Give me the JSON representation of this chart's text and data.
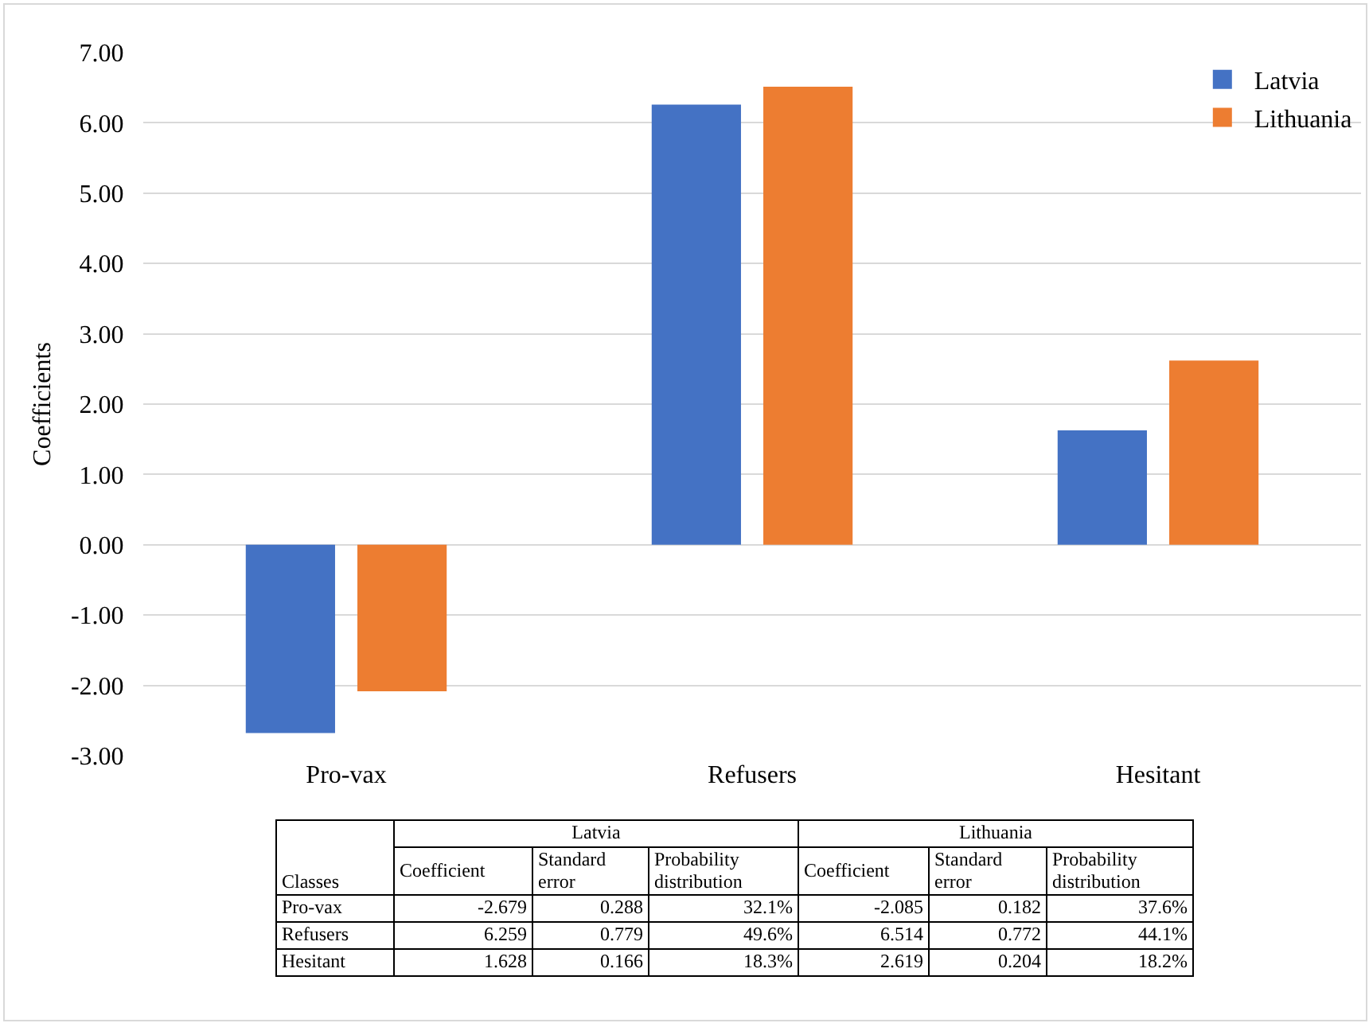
{
  "chart_data": {
    "type": "bar",
    "ylabel": "Coefficients",
    "categories": [
      "Pro-vax",
      "Refusers",
      "Hesitant"
    ],
    "series": [
      {
        "name": "Latvia",
        "color": "#4472c4",
        "values": [
          -2.679,
          6.259,
          1.628
        ]
      },
      {
        "name": "Lithuania",
        "color": "#ed7d31",
        "values": [
          -2.085,
          6.514,
          2.619
        ]
      }
    ],
    "ylim": [
      -3,
      7
    ],
    "yticks": [
      {
        "value": -3,
        "label": "-3.00"
      },
      {
        "value": -2,
        "label": "-2.00"
      },
      {
        "value": -1,
        "label": "-1.00"
      },
      {
        "value": 0,
        "label": "0.00"
      },
      {
        "value": 1,
        "label": "1.00"
      },
      {
        "value": 2,
        "label": "2.00"
      },
      {
        "value": 3,
        "label": "3.00"
      },
      {
        "value": 4,
        "label": "4.00"
      },
      {
        "value": 5,
        "label": "5.00"
      },
      {
        "value": 6,
        "label": "6.00"
      },
      {
        "value": 7,
        "label": "7.00"
      }
    ],
    "grid": "y",
    "legend": "top right",
    "annotations": [
      "Classes",
      "Coefficient",
      "Standard error",
      "Probability distribution",
      "-2.679",
      "0.288",
      "32.1%",
      "6.259",
      "0.779",
      "49.6%",
      "1.628",
      "0.166",
      "18.3%",
      "-2.085",
      "0.182",
      "37.6%",
      "6.514",
      "0.772",
      "44.1%",
      "2.619",
      "0.204",
      "18.2%"
    ]
  }
}
